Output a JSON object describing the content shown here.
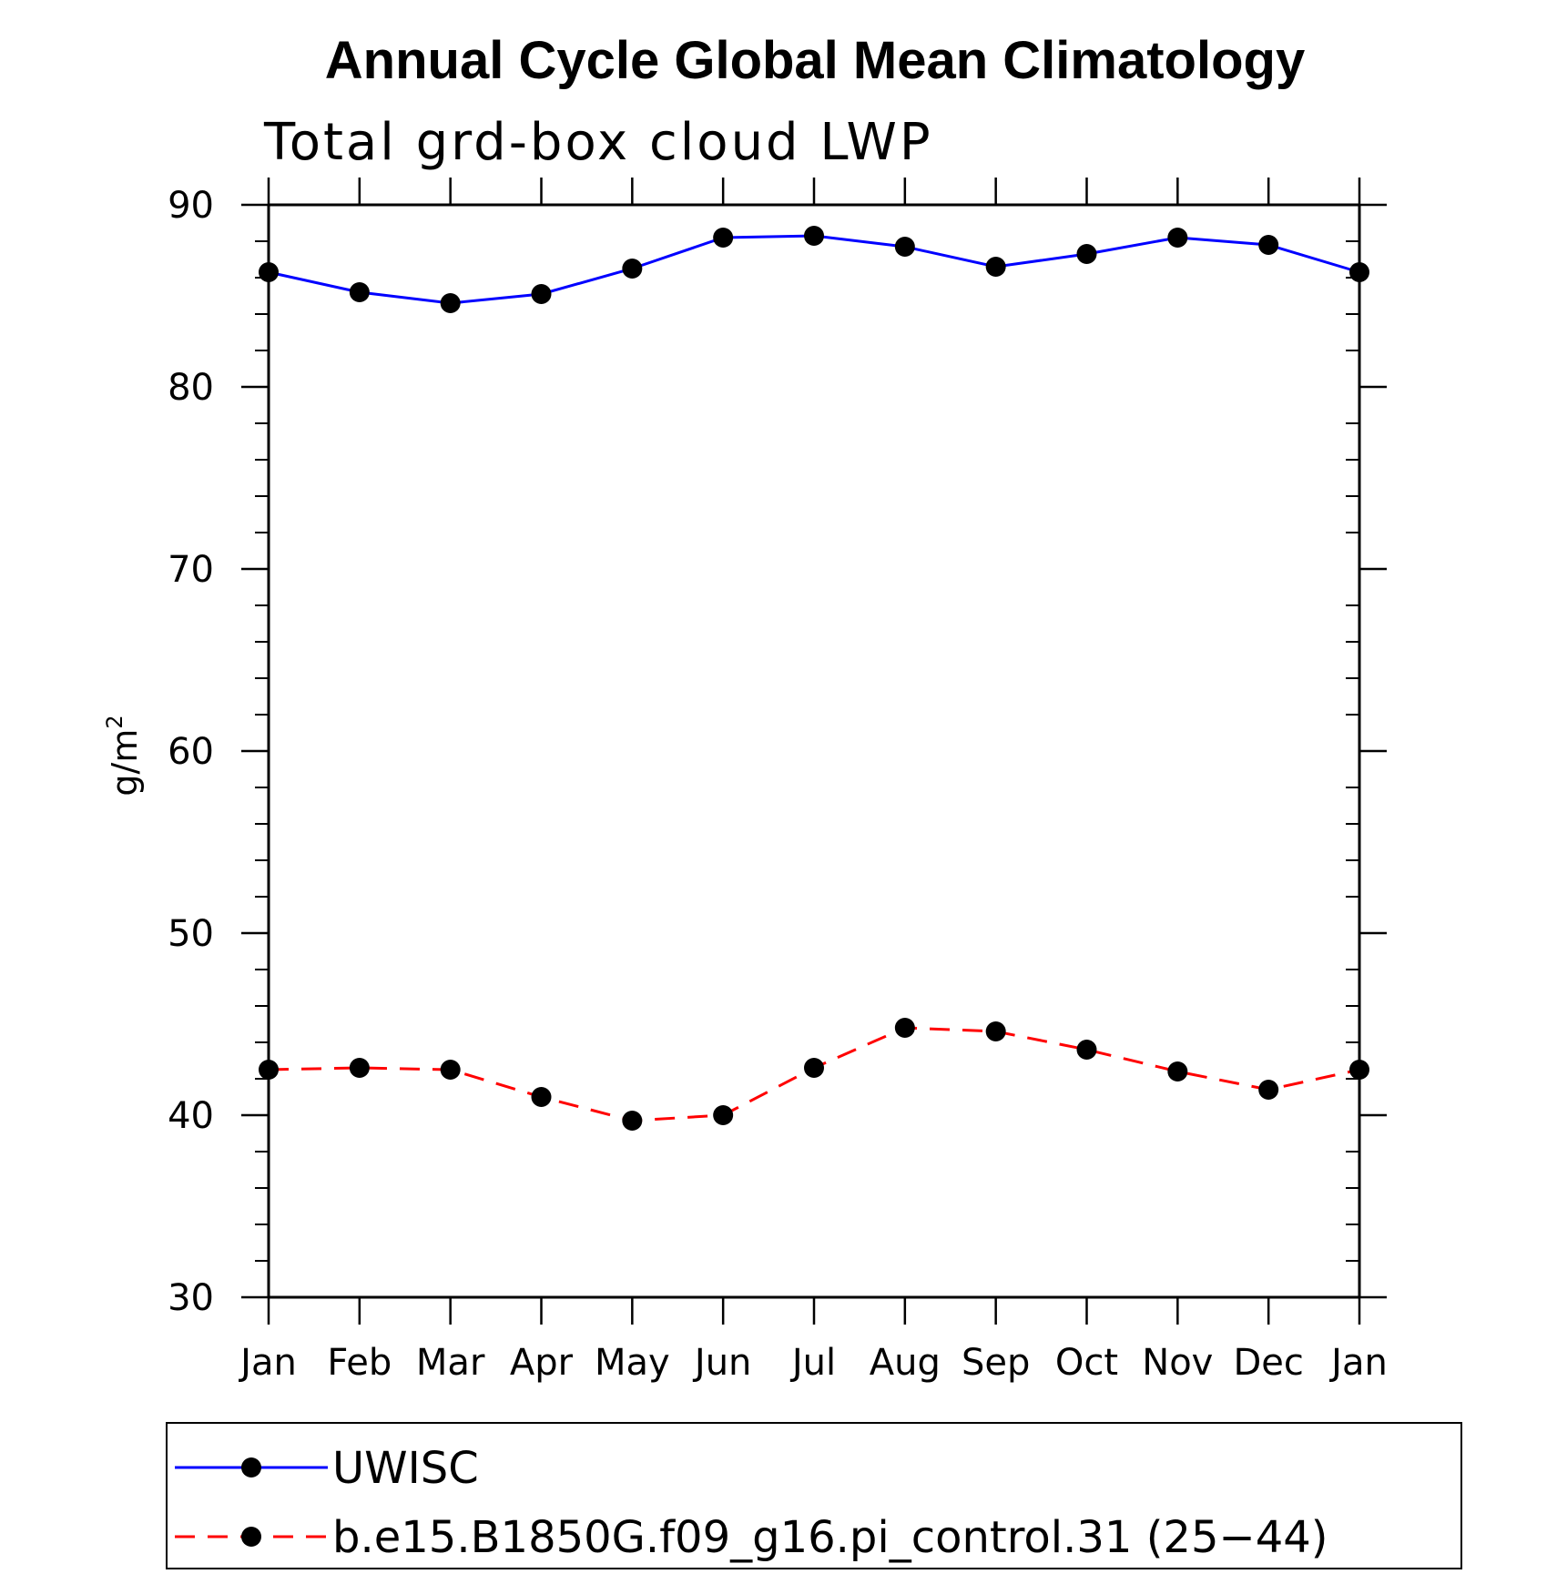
{
  "chart_data": {
    "type": "line",
    "title": "Annual Cycle Global Mean Climatology",
    "subtitle": "Total grd-box cloud LWP",
    "ylabel": "g/m",
    "ylabel_sup": "2",
    "xlabel": "",
    "categories": [
      "Jan",
      "Feb",
      "Mar",
      "Apr",
      "May",
      "Jun",
      "Jul",
      "Aug",
      "Sep",
      "Oct",
      "Nov",
      "Dec",
      "Jan"
    ],
    "ylim": [
      30,
      90
    ],
    "yticks": [
      30,
      40,
      50,
      60,
      70,
      80,
      90
    ],
    "grid": false,
    "legend_position": "bottom",
    "series": [
      {
        "name": "UWISC",
        "color": "#0000ff",
        "line_style": "solid",
        "marker": "filled-circle",
        "values": [
          86.3,
          85.2,
          84.6,
          85.1,
          86.5,
          88.2,
          88.3,
          87.7,
          86.6,
          87.3,
          88.2,
          87.8,
          86.3
        ]
      },
      {
        "name": "b.e15.B1850G.f09_g16.pi_control.31 (25−44)",
        "color": "#ff0000",
        "line_style": "dashed",
        "marker": "filled-circle",
        "values": [
          42.5,
          42.6,
          42.5,
          41.0,
          39.7,
          40.0,
          42.6,
          44.8,
          44.6,
          43.6,
          42.4,
          41.4,
          42.5
        ]
      }
    ]
  }
}
